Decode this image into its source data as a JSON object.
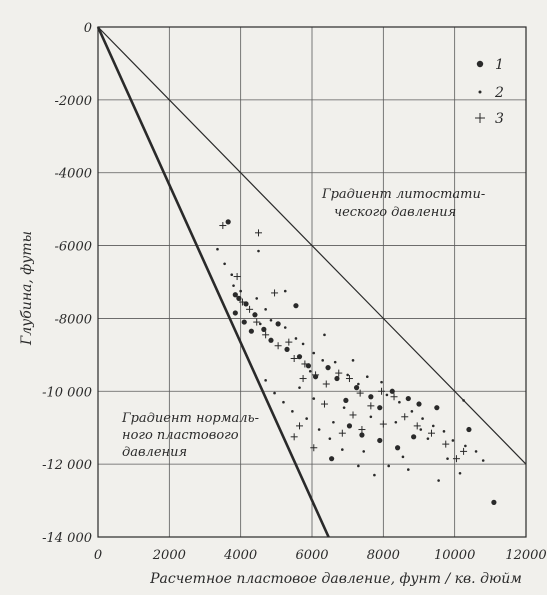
{
  "chart_data": {
    "type": "scatter",
    "xlabel": "Расчетное пластовое давление, фунт / кв. дюйм",
    "ylabel": "Глубина, футы",
    "xlim": [
      0,
      12000
    ],
    "ylim": [
      -14000,
      0
    ],
    "x_ticks": [
      0,
      2000,
      4000,
      6000,
      8000,
      10000,
      12000
    ],
    "x_tick_labels": [
      "0",
      "2000",
      "4000",
      "6000",
      "8000",
      "10000",
      "12000"
    ],
    "y_ticks": [
      0,
      -2000,
      -4000,
      -6000,
      -8000,
      -10000,
      -12000,
      -14000
    ],
    "y_tick_labels": [
      "0",
      "-2000",
      "-4000",
      "-6000",
      "-8000",
      "-10 000",
      "-12 000",
      "-14 000"
    ],
    "grid": true,
    "legend_placement": "top-right",
    "lines": [
      {
        "label_lines": [
          "Градиент литостати-",
          "ческого давления"
        ],
        "points": [
          [
            0,
            0
          ],
          [
            12000,
            -12000
          ]
        ]
      },
      {
        "label_lines": [
          "Градиент нормаль-",
          "ного пластового",
          "давления"
        ],
        "points": [
          [
            0,
            0
          ],
          [
            6465,
            -14000
          ]
        ]
      }
    ],
    "series": [
      {
        "name": "1",
        "marker": "circle-large",
        "points": [
          [
            3650,
            -5350
          ],
          [
            3850,
            -7350
          ],
          [
            3950,
            -7450
          ],
          [
            4150,
            -7600
          ],
          [
            3850,
            -7850
          ],
          [
            4400,
            -7900
          ],
          [
            4100,
            -8100
          ],
          [
            4650,
            -8300
          ],
          [
            5050,
            -8150
          ],
          [
            5550,
            -7650
          ],
          [
            4300,
            -8350
          ],
          [
            4850,
            -8600
          ],
          [
            5300,
            -8850
          ],
          [
            5650,
            -9050
          ],
          [
            5900,
            -9300
          ],
          [
            6100,
            -9600
          ],
          [
            6450,
            -9350
          ],
          [
            6700,
            -9650
          ],
          [
            6950,
            -10250
          ],
          [
            7250,
            -9900
          ],
          [
            7650,
            -10150
          ],
          [
            7900,
            -10450
          ],
          [
            8250,
            -10000
          ],
          [
            8700,
            -10200
          ],
          [
            9000,
            -10350
          ],
          [
            9500,
            -10450
          ],
          [
            7050,
            -10950
          ],
          [
            7400,
            -11200
          ],
          [
            7900,
            -11350
          ],
          [
            8400,
            -11550
          ],
          [
            8850,
            -11250
          ],
          [
            6550,
            -11850
          ],
          [
            10400,
            -11050
          ],
          [
            11100,
            -13050
          ]
        ]
      },
      {
        "name": "2",
        "marker": "dot-small",
        "points": [
          [
            3350,
            -6100
          ],
          [
            3550,
            -6500
          ],
          [
            3750,
            -6800
          ],
          [
            3800,
            -7100
          ],
          [
            4000,
            -7250
          ],
          [
            4450,
            -7450
          ],
          [
            4700,
            -7750
          ],
          [
            4550,
            -8150
          ],
          [
            4850,
            -8050
          ],
          [
            5250,
            -8250
          ],
          [
            5550,
            -8550
          ],
          [
            5750,
            -8700
          ],
          [
            6050,
            -8950
          ],
          [
            6300,
            -9150
          ],
          [
            5950,
            -9450
          ],
          [
            6650,
            -9200
          ],
          [
            7000,
            -9550
          ],
          [
            7300,
            -9800
          ],
          [
            7550,
            -9600
          ],
          [
            7950,
            -9750
          ],
          [
            8100,
            -10100
          ],
          [
            8450,
            -10300
          ],
          [
            8800,
            -10550
          ],
          [
            9100,
            -10750
          ],
          [
            9400,
            -10950
          ],
          [
            9700,
            -11100
          ],
          [
            9950,
            -11350
          ],
          [
            10300,
            -11500
          ],
          [
            10600,
            -11650
          ],
          [
            10250,
            -10250
          ],
          [
            9050,
            -11050
          ],
          [
            8550,
            -11800
          ],
          [
            8150,
            -12050
          ],
          [
            7750,
            -12300
          ],
          [
            7300,
            -12050
          ],
          [
            6850,
            -11600
          ],
          [
            6500,
            -11300
          ],
          [
            6200,
            -11050
          ],
          [
            5850,
            -10750
          ],
          [
            5450,
            -10550
          ],
          [
            5200,
            -10300
          ],
          [
            4950,
            -10050
          ],
          [
            4700,
            -9700
          ],
          [
            6900,
            -10450
          ],
          [
            7650,
            -10700
          ],
          [
            8350,
            -10850
          ],
          [
            9250,
            -11300
          ],
          [
            9800,
            -11850
          ],
          [
            10150,
            -12250
          ],
          [
            9550,
            -12450
          ],
          [
            4500,
            -6150
          ],
          [
            5250,
            -7250
          ],
          [
            6350,
            -8450
          ],
          [
            7150,
            -9150
          ],
          [
            10800,
            -11900
          ],
          [
            5650,
            -9900
          ],
          [
            6050,
            -10200
          ],
          [
            6600,
            -10850
          ],
          [
            7450,
            -11650
          ],
          [
            8700,
            -12150
          ]
        ]
      },
      {
        "name": "3",
        "marker": "cross",
        "points": [
          [
            3500,
            -5450
          ],
          [
            4500,
            -5650
          ],
          [
            3900,
            -6850
          ],
          [
            4050,
            -7550
          ],
          [
            4250,
            -7750
          ],
          [
            4950,
            -7300
          ],
          [
            4450,
            -8100
          ],
          [
            4700,
            -8450
          ],
          [
            5050,
            -8750
          ],
          [
            5350,
            -8650
          ],
          [
            5500,
            -9100
          ],
          [
            5800,
            -9250
          ],
          [
            6100,
            -9550
          ],
          [
            6400,
            -9800
          ],
          [
            6750,
            -9500
          ],
          [
            7050,
            -9650
          ],
          [
            7350,
            -10050
          ],
          [
            7650,
            -10400
          ],
          [
            7950,
            -10000
          ],
          [
            8300,
            -10150
          ],
          [
            8600,
            -10700
          ],
          [
            8950,
            -10950
          ],
          [
            9350,
            -11150
          ],
          [
            9750,
            -11450
          ],
          [
            10050,
            -11850
          ],
          [
            10250,
            -11650
          ],
          [
            7150,
            -10650
          ],
          [
            6850,
            -11150
          ],
          [
            6350,
            -10350
          ],
          [
            5650,
            -10950
          ],
          [
            5500,
            -11250
          ],
          [
            6050,
            -11550
          ],
          [
            7400,
            -11050
          ],
          [
            8000,
            -10900
          ],
          [
            5750,
            -9650
          ]
        ]
      }
    ]
  }
}
